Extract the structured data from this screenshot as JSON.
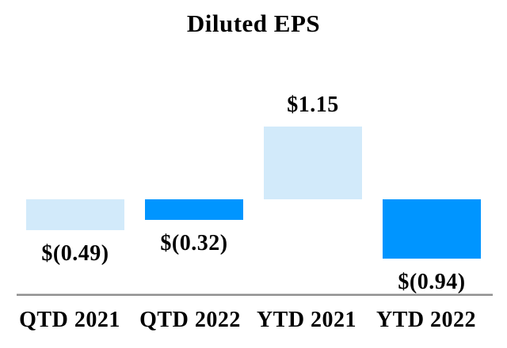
{
  "page": {
    "background": "#FFFFFF",
    "text_color": "#000000"
  },
  "chart_data": {
    "type": "bar",
    "title": "Diluted EPS",
    "categories": [
      "QTD 2021",
      "QTD 2022",
      "YTD 2021",
      "YTD 2022"
    ],
    "values": [
      -0.49,
      -0.32,
      1.15,
      -0.94
    ],
    "value_labels": [
      "$(0.49)",
      "$(0.32)",
      "$1.15",
      "$(0.94)"
    ],
    "colors": [
      "#D2EAFA",
      "#0095FF",
      "#D2EAFA",
      "#0095FF"
    ],
    "baseline": 0,
    "grid": false,
    "legend": "none",
    "y_axis_visible": false,
    "x_axis_line_color": "#8F8F8F",
    "label_color": "#000000"
  }
}
